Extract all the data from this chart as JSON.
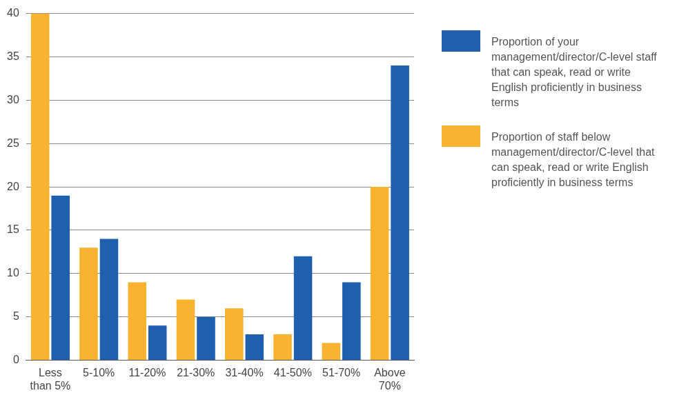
{
  "chart_data": {
    "type": "bar",
    "categories": [
      "Less than 5%",
      "5-10%",
      "11-20%",
      "21-30%",
      "31-40%",
      "41-50%",
      "51-70%",
      "Above 70%"
    ],
    "series": [
      {
        "name": "Proportion of your management/director/C-level staff that can speak, read or write English proficiently in business terms",
        "color": "#1f5fad",
        "values": [
          19,
          14,
          4,
          5,
          3,
          12,
          9,
          34
        ]
      },
      {
        "name": "Proportion of staff below management/director/C-level that can speak, read or write English proficiently in business terms",
        "color": "#f9b330",
        "values": [
          40,
          13,
          9,
          7,
          6,
          3,
          2,
          20
        ]
      }
    ],
    "ylim": [
      0,
      40
    ],
    "yticks": [
      0,
      5,
      10,
      15,
      20,
      25,
      30,
      35,
      40
    ],
    "grid": "y",
    "legend": "right"
  }
}
